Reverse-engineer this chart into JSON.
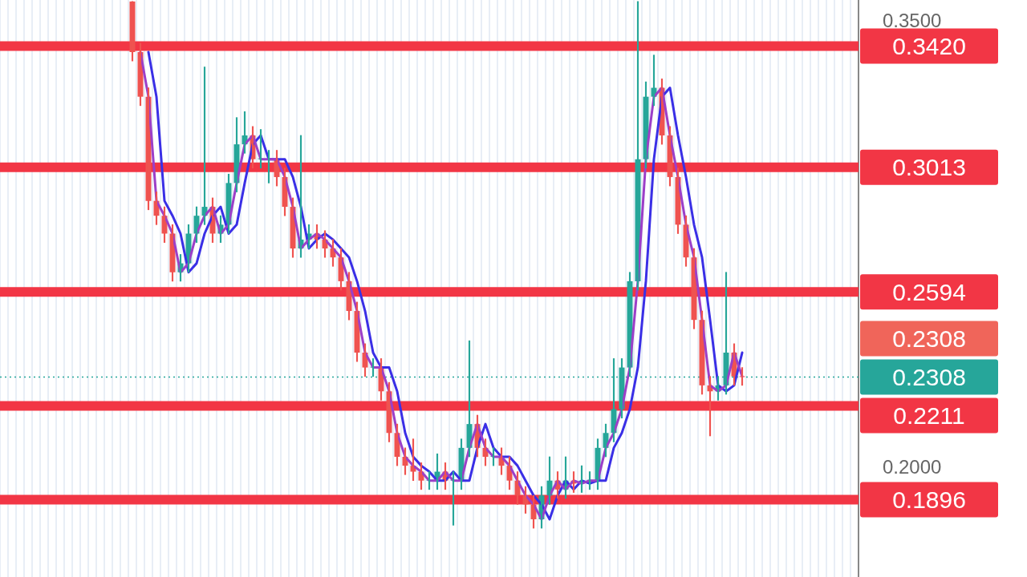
{
  "chart_data": {
    "type": "candlestick",
    "categories": [
      null,
      null,
      null,
      null,
      null,
      null,
      null,
      null,
      null,
      null,
      null,
      null,
      null,
      null,
      null,
      null,
      null,
      null,
      null,
      null,
      null,
      null,
      null,
      null,
      null,
      null,
      null,
      null,
      null,
      null,
      null,
      null,
      null,
      null,
      null,
      null,
      null,
      null,
      null,
      null,
      null,
      null,
      null,
      null,
      null,
      null,
      null,
      null,
      null,
      null,
      null,
      null,
      null,
      null,
      null,
      null,
      null,
      null,
      null,
      null,
      null,
      null,
      null,
      null,
      null,
      null,
      null,
      null,
      null,
      null,
      null,
      null,
      null,
      null,
      null,
      null,
      null,
      null,
      null,
      null,
      null,
      null,
      null,
      null,
      null,
      null,
      null,
      null,
      null,
      null,
      null,
      null,
      null,
      null,
      null,
      null,
      null,
      null,
      null,
      null,
      null,
      null,
      null,
      null,
      null,
      null,
      null
    ],
    "ohlc": [
      null,
      null,
      null,
      null,
      null,
      null,
      null,
      null,
      null,
      null,
      null,
      null,
      null,
      null,
      null,
      null,
      [
        0.357,
        0.357,
        0.337,
        0.34
      ],
      [
        0.34,
        0.343,
        0.322,
        0.325
      ],
      [
        0.325,
        0.328,
        0.287,
        0.29
      ],
      [
        0.29,
        0.293,
        0.282,
        0.285
      ],
      [
        0.285,
        0.288,
        0.276,
        0.279
      ],
      [
        0.279,
        0.282,
        0.263,
        0.266
      ],
      [
        0.266,
        0.272,
        0.263,
        0.269
      ],
      [
        0.269,
        0.282,
        0.266,
        0.279
      ],
      [
        0.279,
        0.288,
        0.276,
        0.285
      ],
      [
        0.285,
        0.335,
        0.282,
        0.288
      ],
      [
        0.288,
        0.291,
        0.276,
        0.279
      ],
      [
        0.279,
        0.285,
        0.276,
        0.282
      ],
      [
        0.282,
        0.299,
        0.279,
        0.296
      ],
      [
        0.296,
        0.318,
        0.293,
        0.309
      ],
      [
        0.309,
        0.32,
        0.306,
        0.312
      ],
      [
        0.312,
        0.315,
        0.301,
        0.304
      ],
      [
        0.304,
        0.314,
        0.301,
        0.304
      ],
      [
        0.304,
        0.307,
        0.296,
        0.304
      ],
      [
        0.304,
        0.307,
        0.295,
        0.298
      ],
      [
        0.298,
        0.301,
        0.285,
        0.288
      ],
      [
        0.288,
        0.291,
        0.271,
        0.274
      ],
      [
        0.274,
        0.312,
        0.271,
        0.277
      ],
      [
        0.277,
        0.282,
        0.274,
        0.279
      ],
      [
        0.279,
        0.282,
        0.274,
        0.277
      ],
      [
        0.277,
        0.28,
        0.271,
        0.274
      ],
      [
        0.274,
        0.277,
        0.268,
        0.271
      ],
      [
        0.271,
        0.274,
        0.26,
        0.263
      ],
      [
        0.263,
        0.266,
        0.25,
        0.253
      ],
      [
        0.253,
        0.256,
        0.236,
        0.239
      ],
      [
        0.239,
        0.242,
        0.231,
        0.234
      ],
      [
        0.234,
        0.237,
        0.231,
        0.234
      ],
      [
        0.234,
        0.237,
        0.223,
        0.226
      ],
      [
        0.226,
        0.229,
        0.209,
        0.212
      ],
      [
        0.212,
        0.215,
        0.201,
        0.204
      ],
      [
        0.204,
        0.207,
        0.198,
        0.201
      ],
      [
        0.201,
        0.21,
        0.196,
        0.199
      ],
      [
        0.199,
        0.202,
        0.193,
        0.196
      ],
      [
        0.196,
        0.199,
        0.193,
        0.196
      ],
      [
        0.196,
        0.205,
        0.193,
        0.199
      ],
      [
        0.199,
        0.202,
        0.193,
        0.196
      ],
      [
        0.196,
        0.199,
        0.181,
        0.196
      ],
      [
        0.196,
        0.21,
        0.193,
        0.207
      ],
      [
        0.207,
        0.243,
        0.204,
        0.215
      ],
      [
        0.215,
        0.218,
        0.204,
        0.207
      ],
      [
        0.207,
        0.21,
        0.201,
        0.204
      ],
      [
        0.204,
        0.207,
        0.201,
        0.204
      ],
      [
        0.204,
        0.207,
        0.198,
        0.201
      ],
      [
        0.201,
        0.204,
        0.193,
        0.196
      ],
      [
        0.196,
        0.199,
        0.188,
        0.191
      ],
      [
        0.191,
        0.194,
        0.185,
        0.188
      ],
      [
        0.188,
        0.191,
        0.18,
        0.183
      ],
      [
        0.183,
        0.194,
        0.18,
        0.191
      ],
      [
        0.191,
        0.204,
        0.188,
        0.196
      ],
      [
        0.196,
        0.199,
        0.19,
        0.193
      ],
      [
        0.193,
        0.204,
        0.19,
        0.196
      ],
      [
        0.196,
        0.199,
        0.192,
        0.195
      ],
      [
        0.195,
        0.201,
        0.192,
        0.196
      ],
      [
        0.196,
        0.199,
        0.193,
        0.196
      ],
      [
        0.196,
        0.21,
        0.193,
        0.207
      ],
      [
        0.207,
        0.215,
        0.204,
        0.212
      ],
      [
        0.212,
        0.237,
        0.209,
        0.22
      ],
      [
        0.22,
        0.237,
        0.217,
        0.234
      ],
      [
        0.234,
        0.266,
        0.231,
        0.263
      ],
      [
        0.263,
        0.357,
        0.26,
        0.304
      ],
      [
        0.304,
        0.33,
        0.301,
        0.325
      ],
      [
        0.325,
        0.339,
        0.322,
        0.328
      ],
      [
        0.328,
        0.331,
        0.309,
        0.312
      ],
      [
        0.312,
        0.315,
        0.295,
        0.298
      ],
      [
        0.298,
        0.301,
        0.279,
        0.282
      ],
      [
        0.282,
        0.285,
        0.268,
        0.271
      ],
      [
        0.271,
        0.274,
        0.247,
        0.25
      ],
      [
        0.25,
        0.253,
        0.225,
        0.228
      ],
      [
        0.228,
        0.231,
        0.211,
        0.226
      ],
      [
        0.226,
        0.231,
        0.223,
        0.228
      ],
      [
        0.228,
        0.266,
        0.225,
        0.239
      ],
      [
        0.239,
        0.242,
        0.228,
        0.231
      ],
      [
        0.231,
        0.234,
        0.228,
        0.2308
      ],
      null,
      null,
      null,
      null,
      null,
      null,
      null,
      null,
      null,
      null,
      null,
      null,
      null,
      null
    ],
    "colors": [
      null,
      null,
      null,
      null,
      null,
      null,
      null,
      null,
      null,
      null,
      null,
      null,
      null,
      null,
      null,
      null,
      "#ef5350",
      "#ef5350",
      "#ef5350",
      "#ef5350",
      "#ef5350",
      "#ef5350",
      "#26a69a",
      "#26a69a",
      "#26a69a",
      "#26a69a",
      "#ef5350",
      "#26a69a",
      "#26a69a",
      "#26a69a",
      "#26a69a",
      "#ef5350",
      "#26a69a",
      "#26a69a",
      "#ef5350",
      "#ef5350",
      "#ef5350",
      "#26a69a",
      "#26a69a",
      "#ef5350",
      "#ef5350",
      "#ef5350",
      "#ef5350",
      "#ef5350",
      "#ef5350",
      "#ef5350",
      "#26a69a",
      "#ef5350",
      "#ef5350",
      "#ef5350",
      "#ef5350",
      "#ef5350",
      "#ef5350",
      "#26a69a",
      "#26a69a",
      "#ef5350",
      "#26a69a",
      "#26a69a",
      "#26a69a",
      "#ef5350",
      "#ef5350",
      "#26a69a",
      "#ef5350",
      "#ef5350",
      "#ef5350",
      "#ef5350",
      "#ef5350",
      "#26a69a",
      "#26a69a",
      "#ef5350",
      "#26a69a",
      "#ef5350",
      "#26a69a",
      "#26a69a",
      "#26a69a",
      "#26a69a",
      "#26a69a",
      "#26a69a",
      "#26a69a",
      "#26a69a",
      "#26a69a",
      "#26a69a",
      "#ef5350",
      "#ef5350",
      "#ef5350",
      "#ef5350",
      "#ef5350",
      "#ef5350",
      "#ef5350",
      "#26a69a",
      "#26a69a",
      "#ef5350",
      "#ef5350",
      null,
      null,
      null,
      null,
      null,
      null,
      null,
      null,
      null,
      null,
      null,
      null,
      null,
      null
    ],
    "series": [
      {
        "type": "line",
        "color": "#9c3fc8",
        "values": [
          null,
          null,
          null,
          null,
          null,
          null,
          null,
          null,
          null,
          null,
          null,
          null,
          null,
          null,
          null,
          null,
          null,
          0.34,
          0.325,
          0.29,
          0.285,
          0.279,
          0.266,
          0.269,
          0.279,
          0.285,
          0.288,
          0.279,
          0.282,
          0.296,
          0.309,
          0.312,
          0.304,
          0.304,
          0.304,
          0.298,
          0.288,
          0.274,
          0.277,
          0.279,
          0.277,
          0.274,
          0.271,
          0.263,
          0.253,
          0.239,
          0.234,
          0.234,
          0.226,
          0.212,
          0.204,
          0.201,
          0.199,
          0.196,
          0.196,
          0.199,
          0.196,
          0.196,
          0.207,
          0.215,
          0.207,
          0.204,
          0.204,
          0.201,
          0.196,
          0.191,
          0.188,
          0.183,
          0.191,
          0.196,
          0.193,
          0.196,
          0.195,
          0.196,
          0.196,
          0.207,
          0.212,
          0.22,
          0.234,
          0.263,
          0.304,
          0.325,
          0.328,
          0.312,
          0.298,
          0.282,
          0.271,
          0.25,
          0.228,
          0.226,
          0.228,
          0.239,
          0.231,
          null,
          null,
          null,
          null,
          null,
          null,
          null,
          null,
          null,
          null,
          null,
          null,
          null,
          null
        ]
      },
      {
        "type": "line",
        "color": "#3a2fe6",
        "values": [
          null,
          null,
          null,
          null,
          null,
          null,
          null,
          null,
          null,
          null,
          null,
          null,
          null,
          null,
          null,
          null,
          null,
          null,
          0.34,
          0.325,
          0.29,
          0.285,
          0.279,
          0.266,
          0.269,
          0.279,
          0.285,
          0.288,
          0.279,
          0.282,
          0.296,
          0.309,
          0.312,
          0.304,
          0.304,
          0.304,
          0.298,
          0.288,
          0.274,
          0.277,
          0.279,
          0.277,
          0.274,
          0.271,
          0.263,
          0.253,
          0.239,
          0.234,
          0.234,
          0.226,
          0.212,
          0.204,
          0.201,
          0.199,
          0.196,
          0.196,
          0.199,
          0.196,
          0.196,
          0.207,
          0.215,
          0.207,
          0.204,
          0.204,
          0.201,
          0.196,
          0.191,
          0.188,
          0.183,
          0.191,
          0.196,
          0.193,
          0.196,
          0.195,
          0.196,
          0.196,
          0.207,
          0.212,
          0.22,
          0.234,
          0.263,
          0.304,
          0.325,
          0.328,
          0.312,
          0.298,
          0.282,
          0.271,
          0.25,
          0.228,
          0.226,
          0.228,
          0.239,
          null,
          null,
          null,
          null,
          null,
          null,
          null,
          null,
          null,
          null,
          null,
          null,
          null,
          null
        ]
      }
    ],
    "ylim": [
      0.1636,
      0.3575
    ],
    "yticks": [
      {
        "value": 0.35,
        "label": "0.3500"
      },
      {
        "value": 0.2,
        "label": "0.2000"
      }
    ],
    "ref_lines": [
      {
        "axis": "y",
        "value": 0.342,
        "label": "0.3420",
        "color": "#f23645"
      },
      {
        "axis": "y",
        "value": 0.3013,
        "label": "0.3013",
        "color": "#f23645"
      },
      {
        "axis": "y",
        "value": 0.2594,
        "label": "0.2594",
        "color": "#f23645"
      },
      {
        "axis": "y",
        "value": 0.2211,
        "label": "0.2211",
        "color": "#f23645"
      },
      {
        "axis": "y",
        "value": 0.1896,
        "label": "0.1896",
        "color": "#f23645"
      },
      {
        "axis": "y",
        "value": 0.2308,
        "label": "0.2308",
        "color": "#26a69a",
        "line_style": "dotted"
      }
    ],
    "annotations": [
      "0.2308"
    ],
    "grid": "x",
    "legend": false,
    "tick_labels": "y",
    "marker": "none"
  }
}
